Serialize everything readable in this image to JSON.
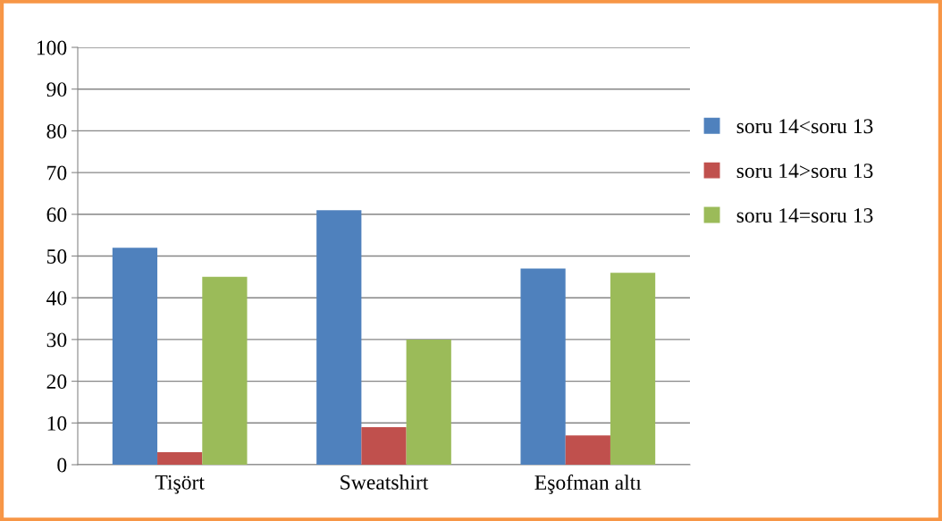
{
  "chart_data": {
    "type": "bar",
    "categories": [
      "Tişört",
      "Sweatshirt",
      "Eşofman altı"
    ],
    "series": [
      {
        "name": "soru 14<soru 13",
        "color": "#4f81bd",
        "values": [
          52,
          61,
          47
        ]
      },
      {
        "name": "soru 14>soru 13",
        "color": "#c0504d",
        "values": [
          3,
          9,
          7
        ]
      },
      {
        "name": "soru 14=soru 13",
        "color": "#9bbb59",
        "values": [
          45,
          30,
          46
        ]
      }
    ],
    "ylim": [
      0,
      100
    ],
    "yticks": [
      0,
      10,
      20,
      30,
      40,
      50,
      60,
      70,
      80,
      90,
      100
    ],
    "grid": "y",
    "legend": "right"
  }
}
